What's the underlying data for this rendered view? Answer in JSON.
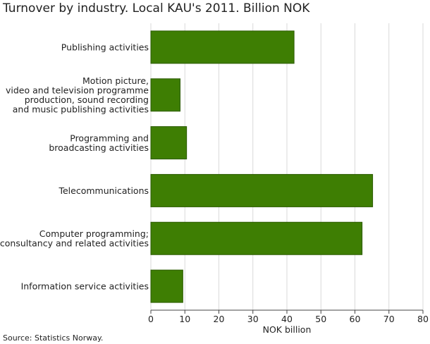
{
  "chart_data": {
    "type": "bar",
    "orientation": "horizontal",
    "title": "Turnover by industry. Local KAU's 2011. Billion NOK",
    "xlabel": "NOK billion",
    "ylabel": "",
    "source": "Source: Statistics Norway.",
    "categories": [
      [
        "Publishing activities"
      ],
      [
        "Motion picture,",
        "video and television programme",
        "production, sound recording",
        "and music publishing activities"
      ],
      [
        "Programming and",
        "broadcasting activities"
      ],
      [
        "Telecommunications"
      ],
      [
        "Computer programming;",
        "consultancy and related activities"
      ],
      [
        "Information service activities"
      ]
    ],
    "values": [
      42.1,
      8.6,
      10.5,
      65.2,
      62.1,
      9.4
    ],
    "xlim": [
      0,
      80
    ],
    "xticks": [
      "0",
      "10",
      "20",
      "30",
      "40",
      "50",
      "60",
      "70",
      "80"
    ],
    "grid": true,
    "colors": {
      "bar": "#3e7e03",
      "bar_stroke": "#2a5a00",
      "grid": "#d9d9d9",
      "axis": "#444444"
    }
  }
}
